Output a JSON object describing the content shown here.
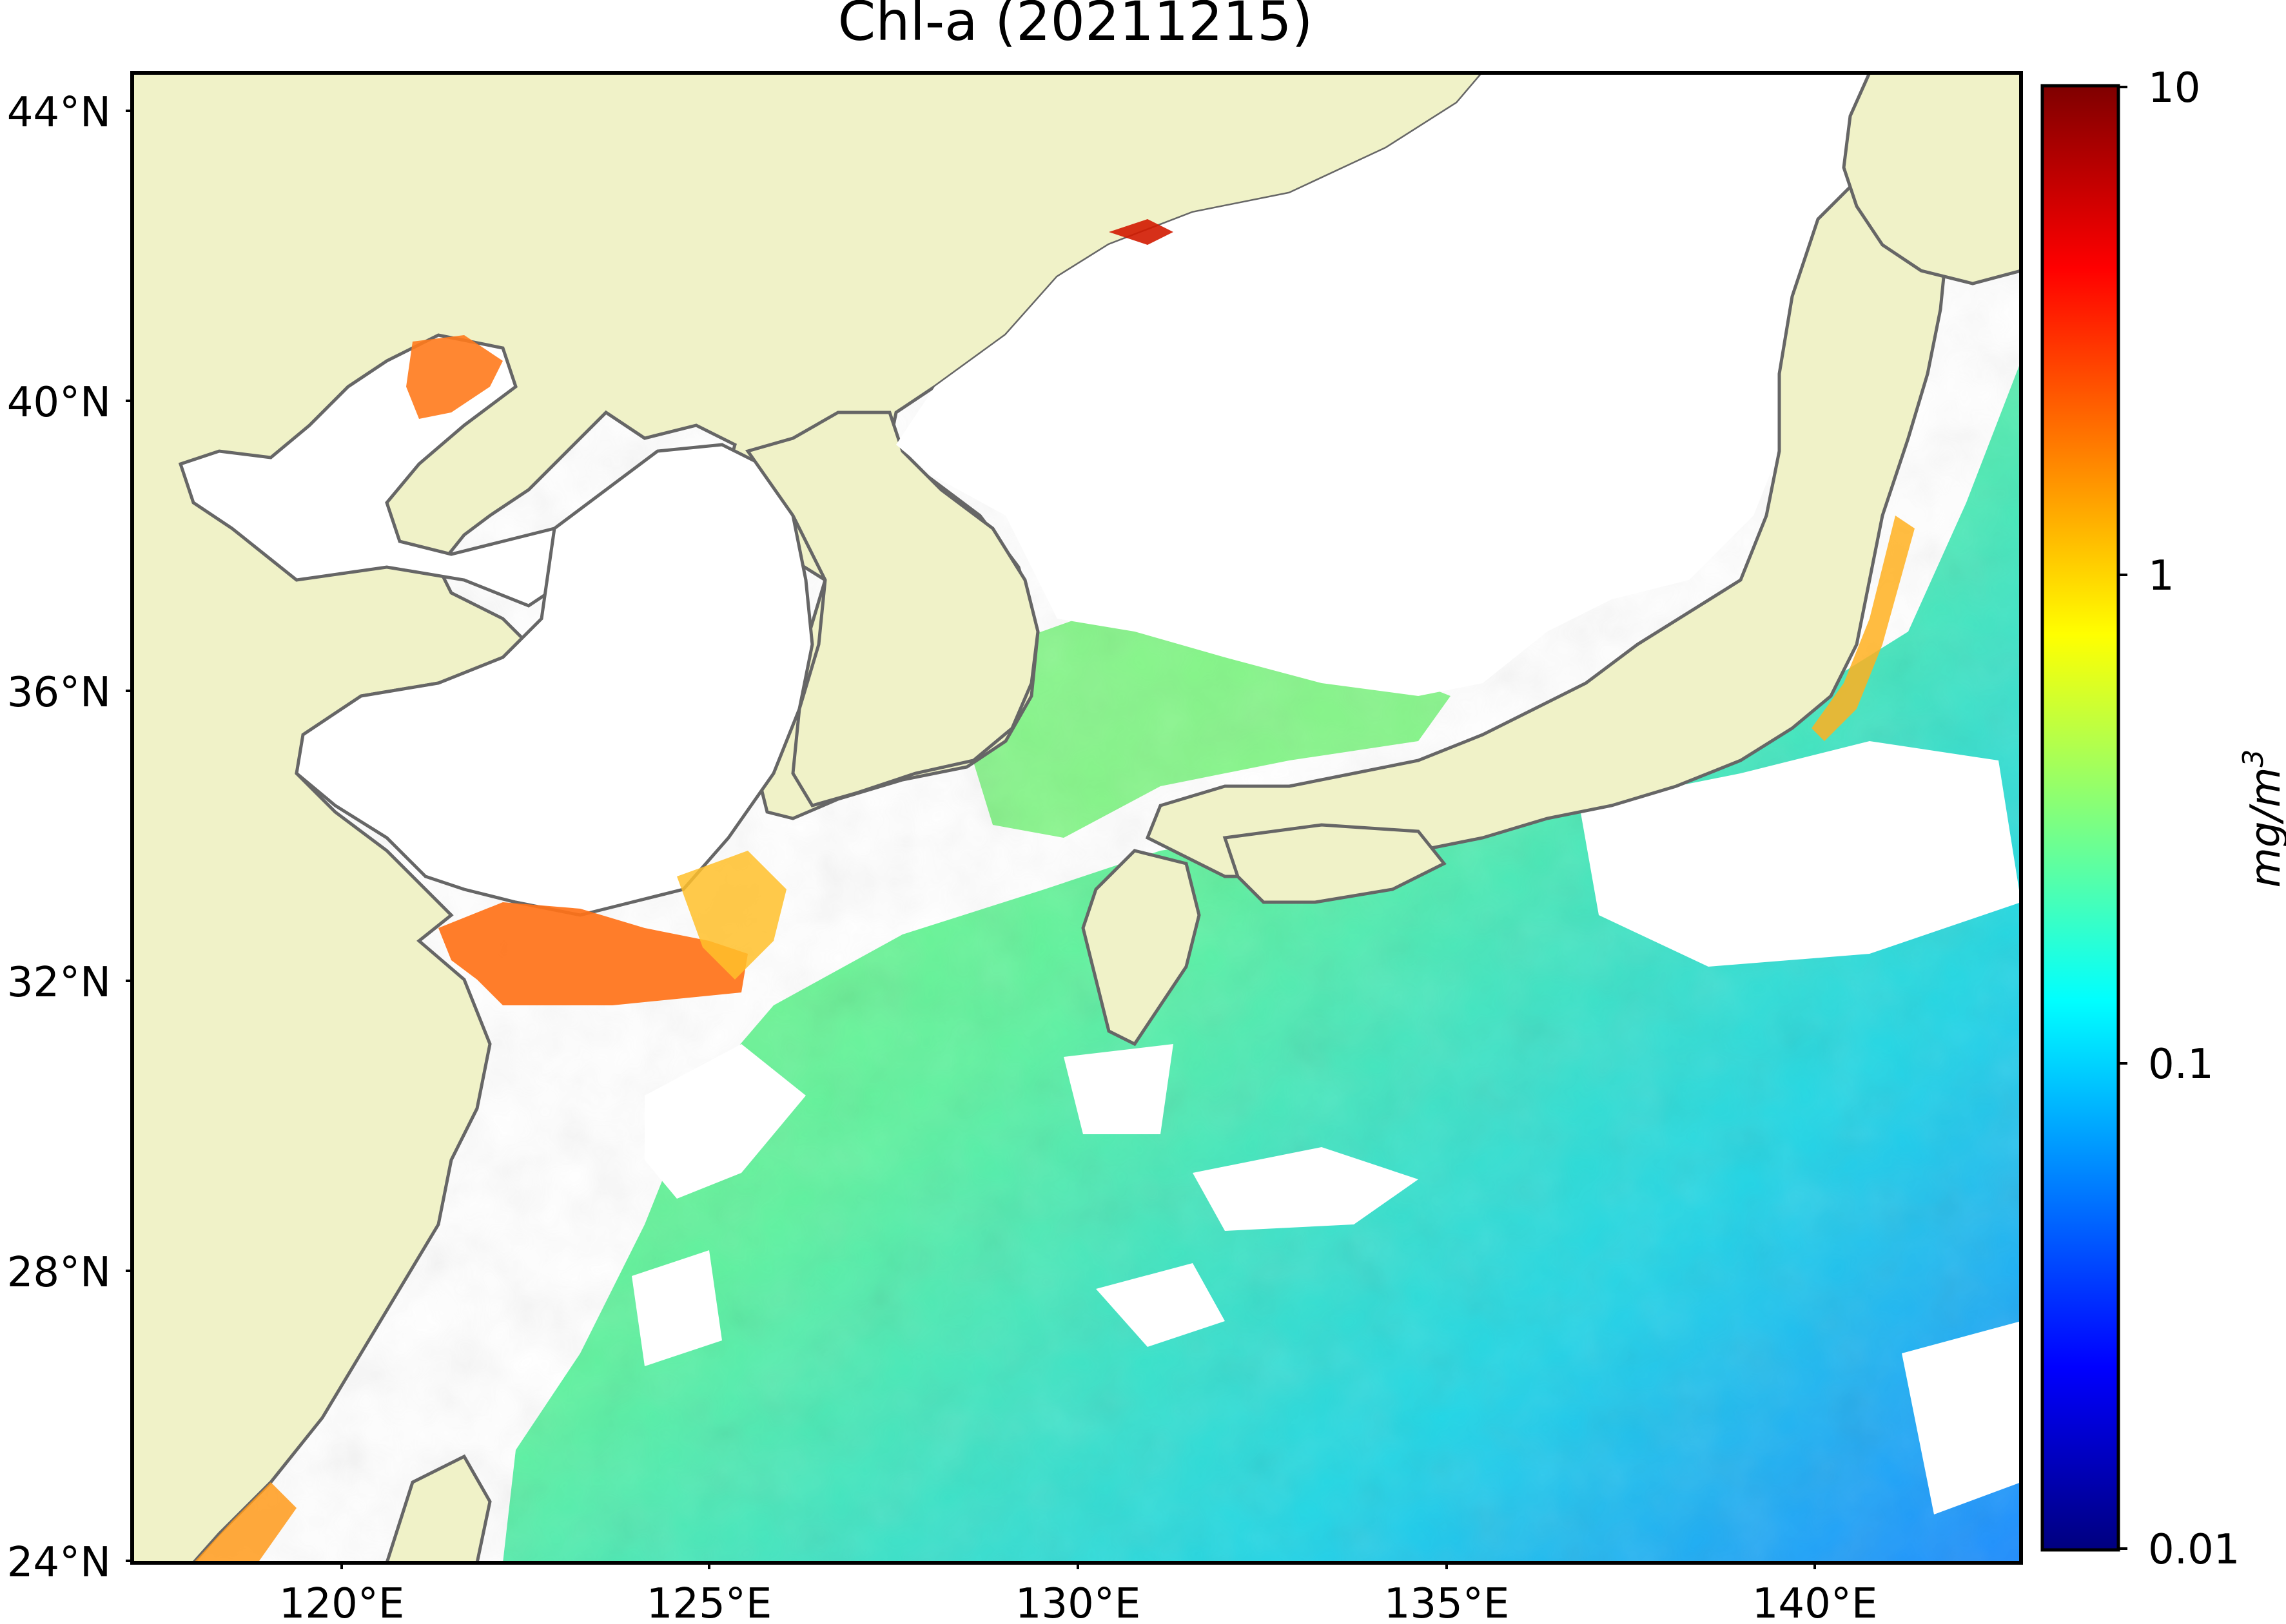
{
  "title": "Chl-a (20211215)",
  "map": {
    "lon_ticks": [
      "120°E",
      "125°E",
      "130°E",
      "135°E",
      "140°E"
    ],
    "lat_ticks": [
      "44°N",
      "40°N",
      "36°N",
      "32°N",
      "28°N",
      "24°N"
    ],
    "land_color": "#f0f2c8",
    "coast_color": "#666666",
    "cloud_color": "#ffffff"
  },
  "colorbar": {
    "label": "mg/m",
    "label_sup": "3",
    "ticks": [
      "10",
      "1",
      "0.1",
      "0.01"
    ],
    "scale": "log",
    "range": [
      0.01,
      10
    ],
    "colormap": "jet",
    "colors": [
      "#00007f",
      "#0000ff",
      "#007fff",
      "#00ffff",
      "#7fff7f",
      "#ffff00",
      "#ff7f00",
      "#ff0000",
      "#7f0000"
    ]
  }
}
